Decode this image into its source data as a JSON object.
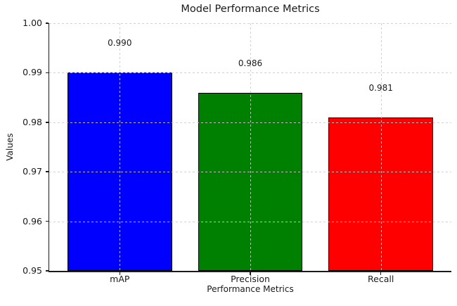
{
  "chart_data": {
    "type": "bar",
    "title": "Model Performance Metrics",
    "xlabel": "Performance Metrics",
    "ylabel": "Values",
    "categories": [
      "mAP",
      "Precision",
      "Recall"
    ],
    "values": [
      0.99,
      0.986,
      0.981
    ],
    "value_labels": [
      "0.990",
      "0.986",
      "0.981"
    ],
    "series": [
      {
        "name": "mAP",
        "value": 0.99,
        "color": "#0000ff"
      },
      {
        "name": "Precision",
        "value": 0.986,
        "color": "#008000"
      },
      {
        "name": "Recall",
        "value": 0.981,
        "color": "#ff0000"
      }
    ],
    "bar_colors": [
      "#0000ff",
      "#008000",
      "#ff0000"
    ],
    "bar_edge_color": "#000000",
    "ylim": [
      0.95,
      1.0
    ],
    "yticks": [
      0.95,
      0.96,
      0.97,
      0.98,
      0.99,
      1.0
    ],
    "ytick_labels": [
      "0.95",
      "0.96",
      "0.97",
      "0.98",
      "0.99",
      "1.00"
    ],
    "grid": true,
    "grid_style": "dashed",
    "grid_above_bars": true,
    "grid_color": "#cccccc",
    "axis_color": "#1a1a1a",
    "background_color": "#ffffff",
    "legend": "none"
  }
}
